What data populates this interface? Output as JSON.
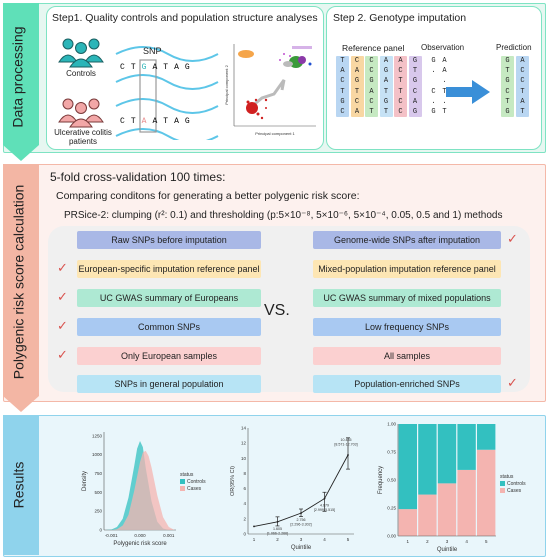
{
  "sections": {
    "data_processing": "Data processing",
    "prs_calc": "Polygenic risk score calculation",
    "results": "Results"
  },
  "colors": {
    "band1": "#e6f7f1",
    "band1_border": "#7ee3c3",
    "band2": "#fdf1ee",
    "band2_border": "#f4b8a8",
    "band3": "#e9f6fb",
    "band3_border": "#8fd3ec",
    "controls": "#33c0c0",
    "cases": "#f4b4b0"
  },
  "step1": {
    "title": "Step1. Quality controls and population structure analyses",
    "snp_label": "SNP",
    "controls": "Controls",
    "cases_line1": "Ulcerative colitis",
    "cases_line2": "patients",
    "seq_top": [
      "C",
      "T",
      "G",
      "A",
      "T",
      "A",
      "G"
    ],
    "seq_bottom": [
      "C",
      "T",
      "A",
      "A",
      "T",
      "A",
      "G"
    ],
    "pca_xlabel": "Principal component 1",
    "pca_ylabel": "Principal component 2"
  },
  "step2": {
    "title": "Step 2. Genotype imputation",
    "reference_panel": "Reference panel",
    "observation": "Observation",
    "prediction": "Prediction",
    "reference_columns": [
      {
        "color": "#b9d6f2",
        "letters": [
          "T",
          "A",
          "C",
          "T",
          "G",
          "C"
        ]
      },
      {
        "color": "#f8d7a3",
        "letters": [
          "C",
          "A",
          "G",
          "T",
          "C",
          "A"
        ]
      },
      {
        "color": "#c6e9c2",
        "letters": [
          "C",
          "C",
          "G",
          "A",
          "C",
          "T"
        ]
      },
      {
        "color": "#c6e2f5",
        "letters": [
          "A",
          "G",
          "A",
          "T",
          "G",
          "T"
        ]
      },
      {
        "color": "#f4c1c7",
        "letters": [
          "A",
          "C",
          "T",
          "T",
          "C",
          "C"
        ]
      },
      {
        "color": "#d8c8ec",
        "letters": [
          "G",
          "T",
          "G",
          "C",
          "A",
          "G"
        ]
      }
    ],
    "observation_columns": [
      [
        "G",
        ".",
        "",
        "C",
        ".",
        "G"
      ],
      [
        "A",
        "A",
        ".",
        "T",
        ".",
        "T"
      ]
    ],
    "prediction_columns": [
      {
        "color": "#c6e9c2",
        "letters": [
          "G",
          "T",
          "G",
          "C",
          "T",
          "G"
        ]
      },
      {
        "color": "#b9d6f2",
        "letters": [
          "A",
          "C",
          "C",
          "T",
          "A",
          "T"
        ]
      }
    ]
  },
  "prs": {
    "line1": "5-fold cross-validation 100 times:",
    "line2": "Comparing conditons for generating a better polygenic risk score:",
    "line3": "PRSice-2: clumping (r²: 0.1) and thresholding (p:5×10⁻⁸, 5×10⁻⁶, 5×10⁻⁴, 0.05, 0.5 and 1) methods",
    "vs": "VS.",
    "left_options": [
      {
        "label": "Raw SNPs before imputation",
        "color": "#a9b8e6",
        "checked": false
      },
      {
        "label": "European-specific imputation reference panel",
        "color": "#fde6b4",
        "checked": true
      },
      {
        "label": "UC GWAS summary of Europeans",
        "color": "#aee9d3",
        "checked": true
      },
      {
        "label": "Common SNPs",
        "color": "#a9c9f2",
        "checked": true
      },
      {
        "label": "Only European samples",
        "color": "#fbd0d0",
        "checked": true
      },
      {
        "label": "SNPs in general population",
        "color": "#b7e4f5",
        "checked": false
      }
    ],
    "right_options": [
      {
        "label": "Genome-wide SNPs after imputation",
        "color": "#a9b8e6",
        "checked": true
      },
      {
        "label": "Mixed-population imputation reference panel",
        "color": "#fde6b4",
        "checked": false
      },
      {
        "label": "UC GWAS summary of mixed populations",
        "color": "#aee9d3",
        "checked": false
      },
      {
        "label": "Low frequency SNPs",
        "color": "#a9c9f2",
        "checked": false
      },
      {
        "label": "All samples",
        "color": "#fbd0d0",
        "checked": false
      },
      {
        "label": "Population-enriched SNPs",
        "color": "#b7e4f5",
        "checked": true
      }
    ],
    "checkmark": "✓"
  },
  "chart_data": [
    {
      "type": "area",
      "xlabel": "Polygenic risk score",
      "ylabel": "Density",
      "x_ticks": [
        "-0.001",
        "0.000",
        "0.001"
      ],
      "y_ticks": [
        "0",
        "250",
        "500",
        "750",
        "1000",
        "1250"
      ],
      "ylim": [
        0,
        1300
      ],
      "legend_title": "status",
      "legend_position": "right",
      "series": [
        {
          "name": "Controls",
          "color": "#33c0c0",
          "x": [
            -0.0012,
            -0.001,
            -0.0008,
            -0.0006,
            -0.0004,
            -0.0002,
            -0.0001,
            0.0,
            0.0001,
            0.0002,
            0.0004,
            0.0006,
            0.0008,
            0.001
          ],
          "y": [
            0,
            5,
            40,
            150,
            430,
            850,
            1080,
            1180,
            1100,
            820,
            380,
            110,
            20,
            0
          ]
        },
        {
          "name": "Cases",
          "color": "#f4b4b0",
          "x": [
            -0.001,
            -0.0008,
            -0.0006,
            -0.0004,
            -0.0002,
            0.0,
            0.0001,
            0.0002,
            0.0003,
            0.0004,
            0.0006,
            0.0008,
            0.001,
            0.0012
          ],
          "y": [
            0,
            10,
            60,
            200,
            520,
            900,
            1030,
            1050,
            980,
            830,
            460,
            170,
            40,
            0
          ]
        }
      ]
    },
    {
      "type": "line",
      "xlabel": "Quintile",
      "ylabel": "OR(95% CI)",
      "x": [
        1,
        2,
        3,
        4,
        5
      ],
      "y_ticks": [
        "0",
        "2",
        "4",
        "6",
        "8",
        "10",
        "12",
        "14"
      ],
      "ylim": [
        0,
        14
      ],
      "values": [
        1.0,
        1.605,
        2.756,
        4.679,
        10.435
      ],
      "ci_low": [
        1.0,
        1.066,
        2.296,
        2.999,
        8.571
      ],
      "ci_high": [
        1.0,
        2.266,
        3.302,
        5.515,
        12.703
      ],
      "labels": [
        "",
        "1.605\n[1.066-2.266]",
        "2.756\n[2.296-3.302]",
        "4.679\n[2.999-5.515]",
        "10.435\n[8.571-12.703]"
      ]
    },
    {
      "type": "bar",
      "xlabel": "Quintile",
      "ylabel": "Frequency",
      "categories": [
        "1",
        "2",
        "3",
        "4",
        "5"
      ],
      "y_ticks": [
        "0.00",
        "0.25",
        "0.50",
        "0.75",
        "1.00"
      ],
      "ylim": [
        0,
        1
      ],
      "stacked": true,
      "legend_title": "status",
      "legend_position": "right",
      "series": [
        {
          "name": "Cases",
          "color": "#f4b4b0",
          "values": [
            0.24,
            0.37,
            0.47,
            0.59,
            0.77
          ]
        },
        {
          "name": "Controls",
          "color": "#33c0c0",
          "values": [
            0.76,
            0.63,
            0.53,
            0.41,
            0.23
          ]
        }
      ]
    }
  ]
}
